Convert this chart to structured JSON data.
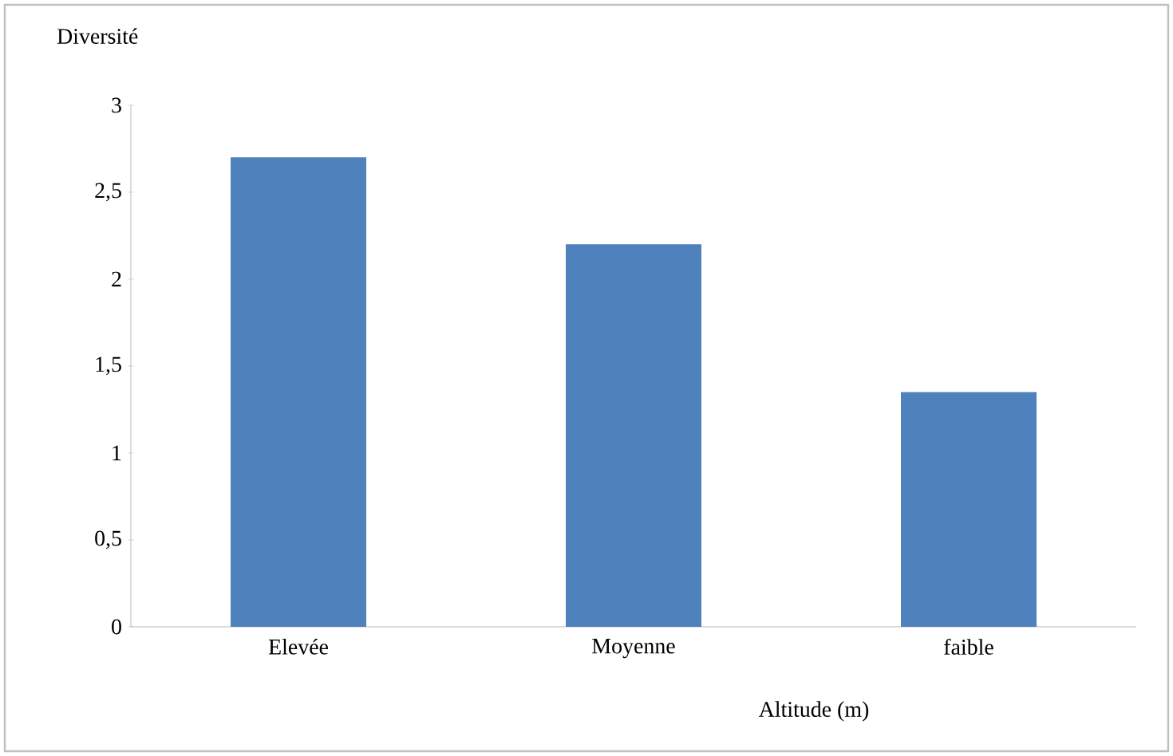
{
  "chart_data": {
    "type": "bar",
    "xlabel": "Altitude (m)",
    "ylabel": "Diversité",
    "categories": [
      "Elevée",
      "Moyenne",
      "faible"
    ],
    "values": [
      2.7,
      2.2,
      1.35
    ],
    "color": "#4f81bd",
    "ylim": [
      0,
      3
    ],
    "yticks": [
      0,
      {
        "value": 0.5,
        "label": "0,5"
      },
      1,
      {
        "value": 1.5,
        "label": "1,5"
      },
      2,
      {
        "value": 2.5,
        "label": "2,5"
      },
      3
    ],
    "grid": false
  }
}
